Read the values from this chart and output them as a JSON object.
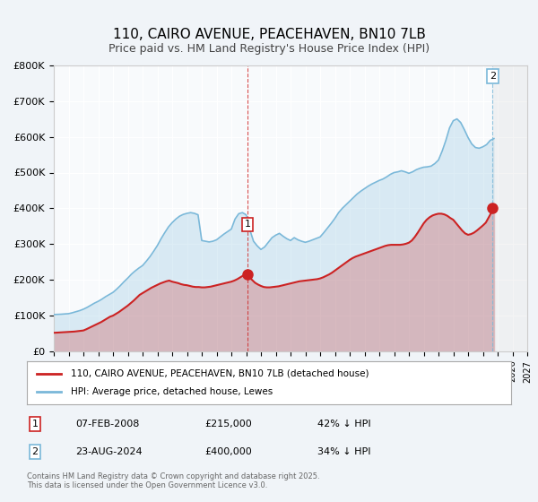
{
  "title": "110, CAIRO AVENUE, PEACEHAVEN, BN10 7LB",
  "subtitle": "Price paid vs. HM Land Registry's House Price Index (HPI)",
  "title_fontsize": 11,
  "subtitle_fontsize": 9,
  "bg_color": "#f0f4f8",
  "plot_bg_color": "#f8fafc",
  "grid_color": "#ffffff",
  "hpi_color": "#7ab8d9",
  "price_color": "#cc2222",
  "xmin": 1995,
  "xmax": 2027,
  "ymin": 0,
  "ymax": 800000,
  "yticks": [
    0,
    100000,
    200000,
    300000,
    400000,
    500000,
    600000,
    700000,
    800000
  ],
  "ytick_labels": [
    "£0",
    "£100K",
    "£200K",
    "£300K",
    "£400K",
    "£500K",
    "£600K",
    "£700K",
    "£800K"
  ],
  "xticks": [
    1995,
    1996,
    1997,
    1998,
    1999,
    2000,
    2001,
    2002,
    2003,
    2004,
    2005,
    2006,
    2007,
    2008,
    2009,
    2010,
    2011,
    2012,
    2013,
    2014,
    2015,
    2016,
    2017,
    2018,
    2019,
    2020,
    2021,
    2022,
    2023,
    2024,
    2025,
    2026,
    2027
  ],
  "marker1_x": 2008.1,
  "marker1_y": 215000,
  "marker1_label": "1",
  "marker1_date": "07-FEB-2008",
  "marker1_price": "£215,000",
  "marker1_hpi": "42% ↓ HPI",
  "marker2_x": 2024.65,
  "marker2_y": 400000,
  "marker2_label": "2",
  "marker2_date": "23-AUG-2024",
  "marker2_price": "£400,000",
  "marker2_hpi": "34% ↓ HPI",
  "legend_label_price": "110, CAIRO AVENUE, PEACEHAVEN, BN10 7LB (detached house)",
  "legend_label_hpi": "HPI: Average price, detached house, Lewes",
  "footer": "Contains HM Land Registry data © Crown copyright and database right 2025.\nThis data is licensed under the Open Government Licence v3.0.",
  "hpi_data_x": [
    1995.0,
    1995.25,
    1995.5,
    1995.75,
    1996.0,
    1996.25,
    1996.5,
    1996.75,
    1997.0,
    1997.25,
    1997.5,
    1997.75,
    1998.0,
    1998.25,
    1998.5,
    1998.75,
    1999.0,
    1999.25,
    1999.5,
    1999.75,
    2000.0,
    2000.25,
    2000.5,
    2000.75,
    2001.0,
    2001.25,
    2001.5,
    2001.75,
    2002.0,
    2002.25,
    2002.5,
    2002.75,
    2003.0,
    2003.25,
    2003.5,
    2003.75,
    2004.0,
    2004.25,
    2004.5,
    2004.75,
    2005.0,
    2005.25,
    2005.5,
    2005.75,
    2006.0,
    2006.25,
    2006.5,
    2006.75,
    2007.0,
    2007.25,
    2007.5,
    2007.75,
    2008.0,
    2008.25,
    2008.5,
    2008.75,
    2009.0,
    2009.25,
    2009.5,
    2009.75,
    2010.0,
    2010.25,
    2010.5,
    2010.75,
    2011.0,
    2011.25,
    2011.5,
    2011.75,
    2012.0,
    2012.25,
    2012.5,
    2012.75,
    2013.0,
    2013.25,
    2013.5,
    2013.75,
    2014.0,
    2014.25,
    2014.5,
    2014.75,
    2015.0,
    2015.25,
    2015.5,
    2015.75,
    2016.0,
    2016.25,
    2016.5,
    2016.75,
    2017.0,
    2017.25,
    2017.5,
    2017.75,
    2018.0,
    2018.25,
    2018.5,
    2018.75,
    2019.0,
    2019.25,
    2019.5,
    2019.75,
    2020.0,
    2020.25,
    2020.5,
    2020.75,
    2021.0,
    2021.25,
    2021.5,
    2021.75,
    2022.0,
    2022.25,
    2022.5,
    2022.75,
    2023.0,
    2023.25,
    2023.5,
    2023.75,
    2024.0,
    2024.25,
    2024.5,
    2024.75
  ],
  "hpi_data_y": [
    103000,
    103500,
    104000,
    104800,
    105500,
    108000,
    111000,
    114000,
    118000,
    123000,
    129000,
    135000,
    140000,
    146000,
    153000,
    159000,
    165000,
    174000,
    184000,
    195000,
    205000,
    216000,
    225000,
    233000,
    240000,
    252000,
    265000,
    280000,
    296000,
    315000,
    332000,
    348000,
    360000,
    370000,
    378000,
    383000,
    386000,
    388000,
    386000,
    382000,
    310000,
    308000,
    306000,
    308000,
    312000,
    320000,
    328000,
    335000,
    342000,
    370000,
    385000,
    388000,
    382000,
    340000,
    308000,
    295000,
    285000,
    292000,
    305000,
    318000,
    325000,
    330000,
    322000,
    315000,
    310000,
    318000,
    312000,
    308000,
    305000,
    308000,
    312000,
    316000,
    320000,
    332000,
    345000,
    358000,
    372000,
    388000,
    400000,
    410000,
    420000,
    430000,
    440000,
    448000,
    455000,
    462000,
    468000,
    473000,
    478000,
    482000,
    488000,
    495000,
    500000,
    502000,
    505000,
    502000,
    498000,
    502000,
    508000,
    512000,
    515000,
    516000,
    518000,
    525000,
    535000,
    560000,
    590000,
    625000,
    645000,
    650000,
    640000,
    620000,
    598000,
    580000,
    570000,
    568000,
    572000,
    578000,
    590000,
    595000
  ],
  "price_data_x": [
    1995.0,
    1995.2,
    1995.4,
    1995.6,
    1995.8,
    1996.0,
    1996.2,
    1996.4,
    1996.6,
    1996.8,
    1997.0,
    1997.2,
    1997.4,
    1997.6,
    1997.8,
    1998.0,
    1998.2,
    1998.4,
    1998.6,
    1998.8,
    1999.0,
    1999.2,
    1999.4,
    1999.6,
    1999.8,
    2000.0,
    2000.2,
    2000.4,
    2000.6,
    2000.8,
    2001.0,
    2001.2,
    2001.4,
    2001.6,
    2001.8,
    2002.0,
    2002.2,
    2002.4,
    2002.6,
    2002.8,
    2003.0,
    2003.2,
    2003.4,
    2003.6,
    2003.8,
    2004.0,
    2004.2,
    2004.4,
    2004.6,
    2004.8,
    2005.0,
    2005.2,
    2005.4,
    2005.6,
    2005.8,
    2006.0,
    2006.2,
    2006.4,
    2006.6,
    2006.8,
    2007.0,
    2007.2,
    2007.4,
    2007.6,
    2007.8,
    2008.0,
    2008.2,
    2008.4,
    2008.6,
    2008.8,
    2009.0,
    2009.2,
    2009.4,
    2009.6,
    2009.8,
    2010.0,
    2010.2,
    2010.4,
    2010.6,
    2010.8,
    2011.0,
    2011.2,
    2011.4,
    2011.6,
    2011.8,
    2012.0,
    2012.2,
    2012.4,
    2012.6,
    2012.8,
    2013.0,
    2013.2,
    2013.4,
    2013.6,
    2013.8,
    2014.0,
    2014.2,
    2014.4,
    2014.6,
    2014.8,
    2015.0,
    2015.2,
    2015.4,
    2015.6,
    2015.8,
    2016.0,
    2016.2,
    2016.4,
    2016.6,
    2016.8,
    2017.0,
    2017.2,
    2017.4,
    2017.6,
    2017.8,
    2018.0,
    2018.2,
    2018.4,
    2018.6,
    2018.8,
    2019.0,
    2019.2,
    2019.4,
    2019.6,
    2019.8,
    2020.0,
    2020.2,
    2020.4,
    2020.6,
    2020.8,
    2021.0,
    2021.2,
    2021.4,
    2021.6,
    2021.8,
    2022.0,
    2022.2,
    2022.4,
    2022.6,
    2022.8,
    2023.0,
    2023.2,
    2023.4,
    2023.6,
    2023.8,
    2024.0,
    2024.2,
    2024.4,
    2024.6,
    2024.8
  ],
  "price_data_y": [
    52000,
    52500,
    53000,
    53500,
    54000,
    54500,
    55000,
    55500,
    56500,
    57500,
    58500,
    62000,
    66000,
    70000,
    74000,
    78000,
    82000,
    87000,
    92000,
    97000,
    100000,
    105000,
    110000,
    116000,
    122000,
    128000,
    135000,
    142000,
    150000,
    158000,
    163000,
    168000,
    173000,
    178000,
    182000,
    186000,
    190000,
    193000,
    196000,
    198000,
    195000,
    193000,
    191000,
    188000,
    186000,
    185000,
    183000,
    181000,
    180000,
    180000,
    179000,
    179000,
    180000,
    181000,
    183000,
    185000,
    187000,
    189000,
    191000,
    193000,
    195000,
    198000,
    202000,
    207000,
    212000,
    215000,
    208000,
    200000,
    192000,
    187000,
    183000,
    180000,
    179000,
    179000,
    180000,
    181000,
    182000,
    184000,
    186000,
    188000,
    190000,
    192000,
    194000,
    196000,
    197000,
    198000,
    199000,
    200000,
    201000,
    202000,
    204000,
    207000,
    211000,
    215000,
    220000,
    226000,
    232000,
    238000,
    244000,
    250000,
    256000,
    261000,
    265000,
    268000,
    271000,
    274000,
    277000,
    280000,
    283000,
    286000,
    289000,
    292000,
    295000,
    297000,
    298000,
    298000,
    298000,
    298000,
    299000,
    301000,
    304000,
    310000,
    320000,
    332000,
    345000,
    358000,
    368000,
    375000,
    380000,
    383000,
    385000,
    385000,
    383000,
    379000,
    373000,
    368000,
    358000,
    348000,
    338000,
    330000,
    326000,
    328000,
    332000,
    338000,
    345000,
    352000,
    360000,
    375000,
    390000,
    400000
  ]
}
